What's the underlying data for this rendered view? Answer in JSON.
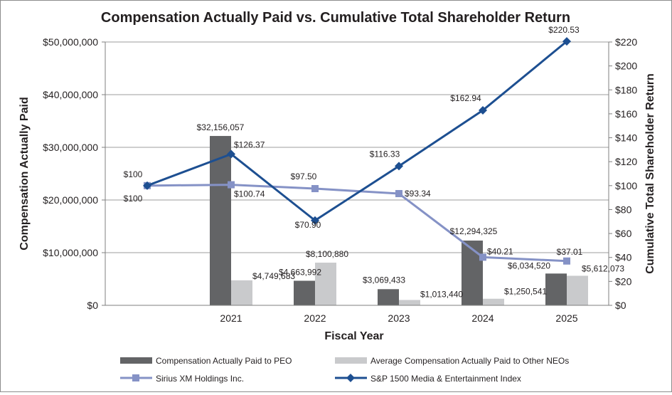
{
  "chart_data": {
    "type": "bar",
    "title": "Compensation Actually Paid vs. Cumulative Total Shareholder Return",
    "xlabel": "Fiscal Year",
    "ylabel": "Compensation Actually Paid",
    "y2label": "Cumulative Total Shareholder Return",
    "ylim": [
      0,
      50000000
    ],
    "y2lim": [
      0,
      220
    ],
    "grid": true,
    "legend_position": "bottom",
    "categories": [
      "",
      "2021",
      "2022",
      "2023",
      "2024",
      "2025"
    ],
    "y_ticks": [
      "$0",
      "$10,000,000",
      "$20,000,000",
      "$30,000,000",
      "$40,000,000",
      "$50,000,000"
    ],
    "y2_ticks": [
      "$0",
      "$20",
      "$40",
      "$60",
      "$80",
      "$100",
      "$120",
      "$140",
      "$160",
      "$180",
      "$200",
      "$220"
    ],
    "bar_series": [
      {
        "name": "Compensation Actually Paid to PEO",
        "color": "#636466",
        "values": [
          null,
          32156057,
          4663992,
          3069433,
          12294325,
          6034520
        ],
        "labels": [
          "",
          "$32,156,057",
          "$4,663,992",
          "$3,069,433",
          "$12,294,325",
          "$6,034,520"
        ]
      },
      {
        "name": "Average Compensation Actually Paid to Other NEOs",
        "color": "#c9cacc",
        "values": [
          null,
          4749683,
          8100880,
          1013440,
          1250541,
          5612073
        ],
        "labels": [
          "",
          "$4,749,683",
          "$8,100,880",
          "$1,013,440",
          "$1,250,541",
          "$5,612,073"
        ]
      }
    ],
    "line_series": [
      {
        "name": "Sirius XM Holdings Inc.",
        "color": "#8592c6",
        "marker": "square",
        "values": [
          100,
          100.74,
          97.5,
          93.34,
          40.21,
          37.01
        ],
        "labels": [
          "$100",
          "$100.74",
          "$97.50",
          "$93.34",
          "$40.21",
          "$37.01"
        ]
      },
      {
        "name": "S&P 1500 Media & Entertainment Index",
        "color": "#1d4f91",
        "marker": "diamond",
        "values": [
          100,
          126.37,
          70.9,
          116.33,
          162.94,
          220.53
        ],
        "labels": [
          "$100",
          "$126.37",
          "$70.90",
          "$116.33",
          "$162.94",
          "$220.53"
        ]
      }
    ]
  }
}
